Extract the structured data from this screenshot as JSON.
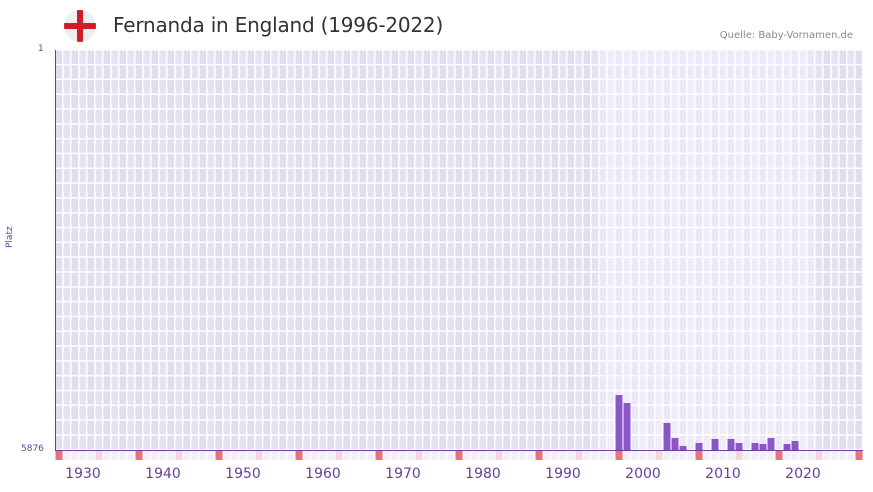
{
  "header": {
    "title": "Fernanda in England (1996-2022)",
    "source": "Quelle: Baby-Vornamen.de",
    "flag_icon": "england-flag-icon"
  },
  "colors": {
    "bar": "#8b55c8",
    "axis": "#6a3fa0",
    "marker_decade": "#e8737d",
    "marker_mid": "#f5d6de",
    "bg_out": "#e3dff0",
    "bg_in": "#efebfa"
  },
  "chart_data": {
    "type": "bar",
    "title": "Fernanda in England (1996-2022)",
    "xlabel": "",
    "ylabel": "Platz",
    "y_inverted": true,
    "ylim": [
      1,
      5876
    ],
    "xlim": [
      1928,
      2028
    ],
    "highlight_range": [
      1996,
      2022
    ],
    "y_tick_labels": [
      "1",
      "5876"
    ],
    "x_tick_labels": [
      "1930",
      "1940",
      "1950",
      "1960",
      "1970",
      "1980",
      "1990",
      "2000",
      "2010",
      "2020"
    ],
    "grid": true,
    "legend": null,
    "x": [
      1998,
      1999,
      2004,
      2005,
      2006,
      2008,
      2010,
      2012,
      2013,
      2015,
      2016,
      2017,
      2019,
      2020
    ],
    "values": [
      5069,
      5186,
      5480,
      5700,
      5817,
      5773,
      5714,
      5714,
      5773,
      5773,
      5788,
      5700,
      5788,
      5744
    ]
  }
}
